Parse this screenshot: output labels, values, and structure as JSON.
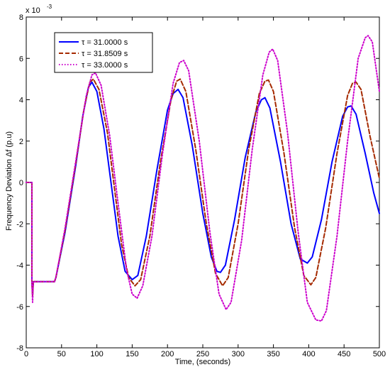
{
  "chart_data": {
    "type": "line",
    "title": "",
    "xlabel": "Time, (seconds)",
    "ylabel": "Frequency Deviation Δf (p.u)",
    "y_multiplier_label": "x 10",
    "y_multiplier_exponent": "-3",
    "xlim": [
      0,
      500
    ],
    "ylim": [
      -8,
      8
    ],
    "x_ticks": [
      "0",
      "50",
      "100",
      "150",
      "200",
      "250",
      "300",
      "350",
      "400",
      "450",
      "500"
    ],
    "y_ticks": [
      "-8",
      "-6",
      "-4",
      "-2",
      "0",
      "2",
      "4",
      "6",
      "8"
    ],
    "grid": false,
    "legend_position": "top-left",
    "series": [
      {
        "name": "τ = 31.0000 s",
        "color": "#0000ff",
        "style": "solid",
        "points": [
          [
            0,
            0
          ],
          [
            8,
            0
          ],
          [
            8,
            -4.8
          ],
          [
            9,
            -5.4
          ],
          [
            10,
            -4.8
          ],
          [
            40,
            -4.8
          ],
          [
            42,
            -4.6
          ],
          [
            55,
            -2.4
          ],
          [
            70,
            0.8
          ],
          [
            80,
            3.2
          ],
          [
            88,
            4.6
          ],
          [
            93,
            4.85
          ],
          [
            100,
            4.4
          ],
          [
            110,
            2.6
          ],
          [
            120,
            0.0
          ],
          [
            130,
            -2.6
          ],
          [
            140,
            -4.3
          ],
          [
            150,
            -4.7
          ],
          [
            158,
            -4.5
          ],
          [
            170,
            -2.6
          ],
          [
            185,
            0.6
          ],
          [
            200,
            3.5
          ],
          [
            208,
            4.3
          ],
          [
            215,
            4.5
          ],
          [
            222,
            4.1
          ],
          [
            235,
            1.8
          ],
          [
            250,
            -1.5
          ],
          [
            262,
            -3.6
          ],
          [
            270,
            -4.3
          ],
          [
            275,
            -4.35
          ],
          [
            282,
            -4.0
          ],
          [
            295,
            -1.8
          ],
          [
            310,
            1.2
          ],
          [
            325,
            3.4
          ],
          [
            333,
            4.0
          ],
          [
            338,
            4.1
          ],
          [
            345,
            3.6
          ],
          [
            360,
            1.0
          ],
          [
            375,
            -2.0
          ],
          [
            388,
            -3.7
          ],
          [
            398,
            -3.9
          ],
          [
            405,
            -3.6
          ],
          [
            418,
            -1.8
          ],
          [
            433,
            1.0
          ],
          [
            448,
            3.2
          ],
          [
            455,
            3.65
          ],
          [
            460,
            3.7
          ],
          [
            467,
            3.3
          ],
          [
            480,
            1.4
          ],
          [
            492,
            -0.5
          ],
          [
            500,
            -1.5
          ]
        ]
      },
      {
        "name": "τ = 31.8509 s",
        "color": "#a52a00",
        "style": "dashed",
        "points": [
          [
            0,
            0
          ],
          [
            8,
            0
          ],
          [
            8,
            -4.8
          ],
          [
            9,
            -5.5
          ],
          [
            10,
            -4.8
          ],
          [
            40,
            -4.8
          ],
          [
            42,
            -4.6
          ],
          [
            55,
            -2.3
          ],
          [
            70,
            0.9
          ],
          [
            82,
            3.6
          ],
          [
            90,
            4.85
          ],
          [
            95,
            5.0
          ],
          [
            103,
            4.5
          ],
          [
            115,
            2.4
          ],
          [
            125,
            -0.3
          ],
          [
            135,
            -3.0
          ],
          [
            145,
            -4.6
          ],
          [
            154,
            -5.0
          ],
          [
            162,
            -4.7
          ],
          [
            175,
            -2.6
          ],
          [
            190,
            1.0
          ],
          [
            205,
            4.0
          ],
          [
            213,
            4.9
          ],
          [
            218,
            5.0
          ],
          [
            226,
            4.4
          ],
          [
            240,
            1.6
          ],
          [
            255,
            -2.0
          ],
          [
            268,
            -4.4
          ],
          [
            278,
            -5.0
          ],
          [
            286,
            -4.6
          ],
          [
            300,
            -2.0
          ],
          [
            315,
            1.6
          ],
          [
            330,
            4.3
          ],
          [
            338,
            4.9
          ],
          [
            343,
            4.95
          ],
          [
            350,
            4.4
          ],
          [
            365,
            1.4
          ],
          [
            380,
            -2.2
          ],
          [
            393,
            -4.5
          ],
          [
            403,
            -4.95
          ],
          [
            410,
            -4.6
          ],
          [
            424,
            -2.2
          ],
          [
            440,
            1.4
          ],
          [
            455,
            4.2
          ],
          [
            462,
            4.8
          ],
          [
            467,
            4.85
          ],
          [
            474,
            4.5
          ],
          [
            487,
            2.2
          ],
          [
            500,
            0.2
          ]
        ]
      },
      {
        "name": "τ = 33.0000 s",
        "color": "#cc00cc",
        "style": "dotted",
        "points": [
          [
            0,
            0
          ],
          [
            8,
            0
          ],
          [
            8,
            -4.8
          ],
          [
            9,
            -5.8
          ],
          [
            10,
            -4.8
          ],
          [
            40,
            -4.8
          ],
          [
            42,
            -4.6
          ],
          [
            55,
            -2.2
          ],
          [
            70,
            1.0
          ],
          [
            85,
            4.2
          ],
          [
            93,
            5.2
          ],
          [
            98,
            5.3
          ],
          [
            106,
            4.7
          ],
          [
            118,
            2.3
          ],
          [
            130,
            -1.0
          ],
          [
            142,
            -4.2
          ],
          [
            150,
            -5.4
          ],
          [
            157,
            -5.6
          ],
          [
            165,
            -5.0
          ],
          [
            178,
            -2.6
          ],
          [
            193,
            1.4
          ],
          [
            208,
            4.8
          ],
          [
            217,
            5.8
          ],
          [
            223,
            5.9
          ],
          [
            230,
            5.4
          ],
          [
            245,
            2.0
          ],
          [
            260,
            -2.4
          ],
          [
            273,
            -5.4
          ],
          [
            283,
            -6.15
          ],
          [
            290,
            -5.8
          ],
          [
            305,
            -2.8
          ],
          [
            320,
            1.6
          ],
          [
            335,
            5.2
          ],
          [
            344,
            6.3
          ],
          [
            349,
            6.45
          ],
          [
            356,
            5.9
          ],
          [
            370,
            2.4
          ],
          [
            385,
            -2.4
          ],
          [
            398,
            -5.8
          ],
          [
            410,
            -6.65
          ],
          [
            418,
            -6.7
          ],
          [
            425,
            -6.2
          ],
          [
            440,
            -2.6
          ],
          [
            455,
            2.0
          ],
          [
            470,
            6.0
          ],
          [
            480,
            7.0
          ],
          [
            484,
            7.1
          ],
          [
            490,
            6.8
          ],
          [
            500,
            4.4
          ]
        ]
      }
    ]
  }
}
